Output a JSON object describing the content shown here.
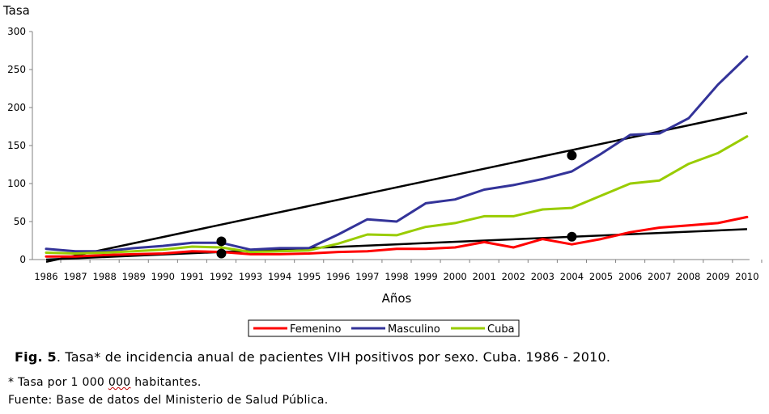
{
  "chart_data": {
    "type": "line",
    "ylabel": "Tasa",
    "xlabel": "Años",
    "ylim": [
      0,
      300
    ],
    "yticks": [
      "0",
      "50",
      "100",
      "150",
      "200",
      "250",
      "300"
    ],
    "categories": [
      "1986",
      "1987",
      "1988",
      "1989",
      "1990",
      "1991",
      "1992",
      "1993",
      "1994",
      "1995",
      "1996",
      "1997",
      "1998",
      "1999",
      "2000",
      "2001",
      "2002",
      "2003",
      "2004",
      "2005",
      "2006",
      "2007",
      "2008",
      "2009",
      "2010"
    ],
    "series": [
      {
        "name": "Femenino",
        "color": "#ff0000",
        "values": [
          4,
          4,
          6,
          7,
          8,
          11,
          10,
          7,
          7,
          8,
          10,
          11,
          14,
          14,
          16,
          23,
          16,
          27,
          20,
          27,
          36,
          42,
          45,
          48,
          56
        ]
      },
      {
        "name": "Masculino",
        "color": "#333399",
        "values": [
          14,
          11,
          11,
          15,
          18,
          22,
          22,
          13,
          15,
          15,
          33,
          53,
          50,
          74,
          79,
          92,
          98,
          106,
          116,
          139,
          164,
          166,
          186,
          230,
          267
        ]
      },
      {
        "name": "Cuba",
        "color": "#99cc00",
        "values": [
          9,
          8,
          9,
          11,
          13,
          17,
          16,
          10,
          11,
          12,
          21,
          33,
          32,
          43,
          48,
          57,
          57,
          66,
          68,
          84,
          100,
          104,
          126,
          140,
          162
        ]
      }
    ],
    "trendlines": [
      {
        "color": "#000000",
        "from": {
          "x": "1986",
          "y": -3
        },
        "to": {
          "x": "2010",
          "y": 193
        }
      },
      {
        "color": "#000000",
        "from": {
          "x": "1986",
          "y": 0
        },
        "to": {
          "x": "2010",
          "y": 40
        }
      }
    ],
    "markers": [
      {
        "x": "1992",
        "y": 24
      },
      {
        "x": "1992",
        "y": 8
      },
      {
        "x": "2004",
        "y": 137
      },
      {
        "x": "2004",
        "y": 30
      }
    ],
    "legend_position": "bottom"
  },
  "caption": {
    "fig_label": "Fig. 5",
    "text": ". Tasa* de incidencia anual de pacientes VIH positivos por sexo. Cuba. 1986 - 2010."
  },
  "notes": {
    "line1_before": "* Tasa por 1 000 ",
    "line1_squiggle": "000",
    "line1_after": " habitantes.",
    "line2": "Fuente: Base de datos del Ministerio de Salud Pública."
  }
}
